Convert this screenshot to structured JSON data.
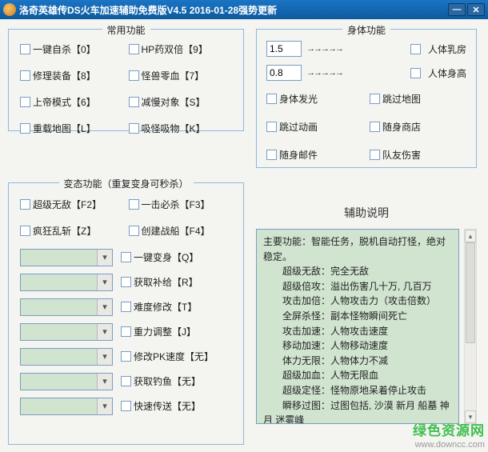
{
  "titlebar": {
    "title": "洛奇英雄传DS火车加速辅助免费版V4.5      2016-01-28强势更新"
  },
  "panel_common": {
    "title": "常用功能",
    "items": [
      "一键自杀【0】",
      "HP药双倍【9】",
      "修理装备【8】",
      "怪兽零血【7】",
      "上帝模式【6】",
      "减慢对象【S】",
      "重载地图【L】",
      "吸怪吸物【K】"
    ]
  },
  "panel_mutant": {
    "title": "变态功能（重复变身可秒杀）",
    "top": [
      "超级无敌【F2】",
      "一击必杀【F3】",
      "疯狂乱斩【Z】",
      "创建战船【F4】"
    ],
    "rows": [
      "一键变身【Q】",
      "获取补给【R】",
      "难度修改【T】",
      "重力调整【J】",
      "修改PK速度【无】",
      "获取钓鱼【无】",
      "快速传送【无】"
    ]
  },
  "panel_body": {
    "title": "身体功能",
    "input1": "1.5",
    "input2": "0.8",
    "label1": "人体乳房",
    "label2": "人体身高",
    "grid": [
      "身体发光",
      "跳过地图",
      "跳过动画",
      "随身商店",
      "随身邮件",
      "队友伤害"
    ]
  },
  "help": {
    "title": "辅助说明",
    "lines": [
      {
        "t": "主要功能：智能任务，脱机自动打怪，绝对稳定。",
        "cls": ""
      },
      {
        "t": "超级无敌：完全无敌",
        "cls": "help-indent"
      },
      {
        "t": "超级倍攻：溢出伤害几十万, 几百万",
        "cls": "help-indent"
      },
      {
        "t": "攻击加倍：人物攻击力（攻击倍数）",
        "cls": "help-indent"
      },
      {
        "t": "全屏杀怪：副本怪物瞬间死亡",
        "cls": "help-indent"
      },
      {
        "t": "攻击加速：人物攻击速度",
        "cls": "help-indent"
      },
      {
        "t": "移动加速：人物移动速度",
        "cls": "help-indent"
      },
      {
        "t": "体力无限：人物体力不减",
        "cls": "help-indent"
      },
      {
        "t": "超级加血：人物无限血",
        "cls": "help-indent"
      },
      {
        "t": "超级定怪：怪物原地呆着停止攻击",
        "cls": "help-indent"
      },
      {
        "t": "瞬移过图：过图包括, 沙漠 新月 船墓 神月 迷雾峰",
        "cls": "help-indent"
      }
    ]
  },
  "watermark": {
    "line1": "绿色资源网",
    "line2": "www.downcc.com"
  }
}
